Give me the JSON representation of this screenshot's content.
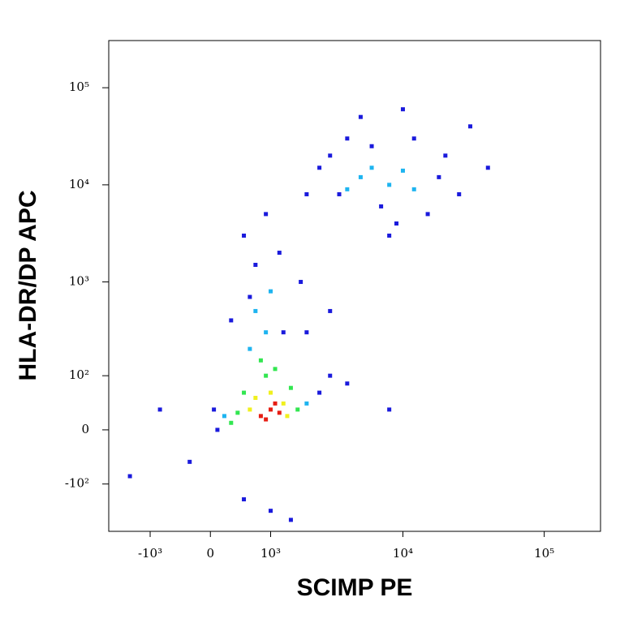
{
  "chart_data": {
    "type": "scatter",
    "xlabel": "SCIMP PE",
    "ylabel": "HLA-DR/DP APC",
    "xlim": [
      -2200,
      250000
    ],
    "ylim": [
      -330,
      306000
    ],
    "xticks": [
      {
        "value": -1000,
        "label": "-10³"
      },
      0,
      {
        "value": 1000,
        "label": "10³"
      },
      {
        "value": 10000,
        "label": "10⁴"
      },
      {
        "value": 100000,
        "label": "10⁵"
      }
    ],
    "yticks": [
      {
        "value": -100,
        "label": "-10²"
      },
      0,
      {
        "value": 100,
        "label": "10²"
      },
      {
        "value": 1000,
        "label": "10³"
      },
      {
        "value": 10000,
        "label": "10⁴"
      },
      {
        "value": 100000,
        "label": "10⁵"
      }
    ],
    "series": [
      {
        "color": "#1a1adc",
        "x": [
          100,
          50,
          2500,
          3000,
          -300,
          500,
          1000,
          700,
          500,
          900,
          1200,
          2000,
          3000,
          4000,
          5000,
          15000,
          20000,
          30000,
          8000,
          10000,
          25000,
          40000,
          2000,
          4000,
          8000,
          -1500,
          -800,
          1500,
          3000,
          1800,
          300,
          600,
          1300,
          2500,
          6000,
          12000,
          18000,
          3500,
          7000,
          9000
        ],
        "y": [
          0,
          30,
          60,
          100,
          -50,
          -150,
          -200,
          1500,
          3000,
          5000,
          2000,
          8000,
          20000,
          30000,
          50000,
          5000,
          20000,
          40000,
          3000,
          60000,
          8000,
          15000,
          300,
          80,
          30,
          -80,
          30,
          -250,
          500,
          1000,
          400,
          700,
          300,
          15000,
          25000,
          30000,
          12000,
          8000,
          6000,
          4000
        ]
      },
      {
        "color": "#1eb4f0",
        "x": [
          200,
          2000,
          600,
          900,
          700,
          1000,
          5000,
          8000,
          12000,
          6000,
          4000,
          10000
        ],
        "y": [
          20,
          40,
          200,
          300,
          500,
          800,
          12000,
          10000,
          9000,
          15000,
          9000,
          14000
        ]
      },
      {
        "color": "#32e650",
        "x": [
          400,
          1700,
          500,
          900,
          1100,
          800,
          300,
          1500
        ],
        "y": [
          25,
          30,
          60,
          100,
          120,
          150,
          10,
          70
        ]
      },
      {
        "color": "#f0f01e",
        "x": [
          600,
          1400,
          700,
          1300,
          1000
        ],
        "y": [
          30,
          20,
          50,
          40,
          60
        ]
      },
      {
        "color": "#e61e14",
        "x": [
          800,
          1000,
          1200,
          1100,
          900
        ],
        "y": [
          20,
          30,
          25,
          40,
          15
        ]
      }
    ]
  }
}
